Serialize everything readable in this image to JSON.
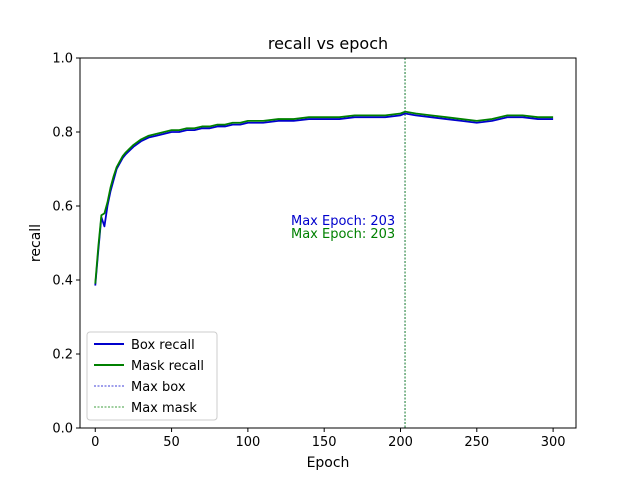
{
  "chart_data": {
    "type": "line",
    "title": "recall vs epoch",
    "xlabel": "Epoch",
    "ylabel": "recall",
    "xlim": [
      -10,
      315
    ],
    "ylim": [
      0.0,
      1.0
    ],
    "xticks": [
      0,
      50,
      100,
      150,
      200,
      250,
      300
    ],
    "yticks": [
      0.0,
      0.2,
      0.4,
      0.6,
      0.8,
      1.0
    ],
    "xtick_labels": [
      "0",
      "50",
      "100",
      "150",
      "200",
      "250",
      "300"
    ],
    "ytick_labels": [
      "0.0",
      "0.2",
      "0.4",
      "0.6",
      "0.8",
      "1.0"
    ],
    "grid": false,
    "legend_position": "lower-left",
    "series": [
      {
        "name": "Box recall",
        "color": "#0000cc",
        "x": [
          0,
          2,
          4,
          6,
          8,
          10,
          12,
          14,
          16,
          18,
          20,
          25,
          30,
          35,
          40,
          45,
          50,
          55,
          60,
          65,
          70,
          75,
          80,
          85,
          90,
          95,
          100,
          110,
          120,
          130,
          140,
          150,
          160,
          170,
          180,
          190,
          200,
          203,
          210,
          220,
          230,
          240,
          250,
          260,
          270,
          280,
          290,
          300
        ],
        "y": [
          0.385,
          0.48,
          0.57,
          0.545,
          0.6,
          0.64,
          0.67,
          0.7,
          0.715,
          0.73,
          0.74,
          0.76,
          0.775,
          0.785,
          0.79,
          0.795,
          0.8,
          0.8,
          0.805,
          0.805,
          0.81,
          0.81,
          0.815,
          0.815,
          0.82,
          0.82,
          0.825,
          0.825,
          0.83,
          0.83,
          0.835,
          0.835,
          0.835,
          0.84,
          0.84,
          0.84,
          0.845,
          0.85,
          0.845,
          0.84,
          0.835,
          0.83,
          0.825,
          0.83,
          0.84,
          0.84,
          0.835,
          0.835
        ]
      },
      {
        "name": "Mask recall",
        "color": "#008000",
        "x": [
          0,
          2,
          4,
          6,
          8,
          10,
          12,
          14,
          16,
          18,
          20,
          25,
          30,
          35,
          40,
          45,
          50,
          55,
          60,
          65,
          70,
          75,
          80,
          85,
          90,
          95,
          100,
          110,
          120,
          130,
          140,
          150,
          160,
          170,
          180,
          190,
          200,
          203,
          210,
          220,
          230,
          240,
          250,
          260,
          270,
          280,
          290,
          300
        ],
        "y": [
          0.39,
          0.49,
          0.575,
          0.58,
          0.61,
          0.65,
          0.68,
          0.705,
          0.72,
          0.735,
          0.745,
          0.765,
          0.78,
          0.79,
          0.795,
          0.8,
          0.805,
          0.805,
          0.81,
          0.81,
          0.815,
          0.815,
          0.82,
          0.82,
          0.825,
          0.825,
          0.83,
          0.83,
          0.835,
          0.835,
          0.84,
          0.84,
          0.84,
          0.845,
          0.845,
          0.845,
          0.85,
          0.855,
          0.85,
          0.845,
          0.84,
          0.835,
          0.83,
          0.835,
          0.845,
          0.845,
          0.84,
          0.84
        ]
      }
    ],
    "vlines": [
      {
        "name": "Max box",
        "x": 203,
        "color": "#0000cc",
        "style": "dashed"
      },
      {
        "name": "Max mask",
        "x": 203,
        "color": "#008000",
        "style": "dashed"
      }
    ],
    "annotations": [
      {
        "text": "Max Epoch: 203",
        "color": "#0000cc"
      },
      {
        "text": "Max Epoch: 203",
        "color": "#008000"
      }
    ],
    "legend": [
      {
        "label": "Box recall",
        "color": "#0000cc",
        "style": "solid"
      },
      {
        "label": "Mask recall",
        "color": "#008000",
        "style": "solid"
      },
      {
        "label": "Max box",
        "color": "#0000cc",
        "style": "dashed"
      },
      {
        "label": "Max mask",
        "color": "#008000",
        "style": "dashed"
      }
    ]
  }
}
